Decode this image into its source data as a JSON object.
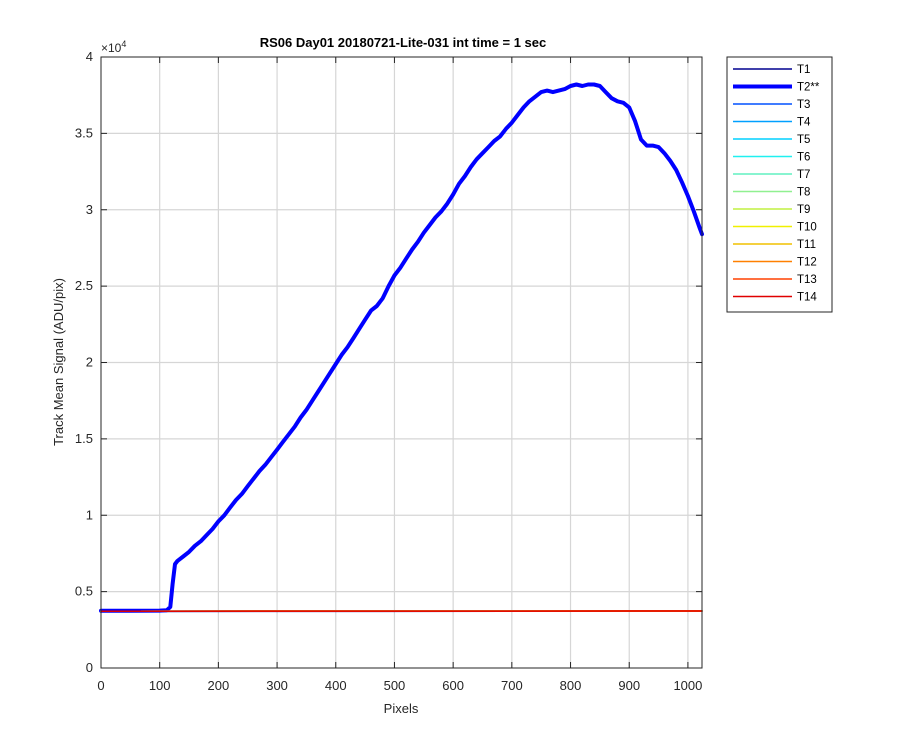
{
  "chart_data": {
    "type": "line",
    "title": "RS06 Day01 20180721-Lite-031 int time = 1 sec",
    "xlabel": "Pixels",
    "ylabel": "Track Mean Signal (ADU/pix)",
    "y_exponent_label": "×10",
    "y_exponent_power": "4",
    "xlim": [
      0,
      1024
    ],
    "ylim": [
      0,
      40000
    ],
    "xticks": [
      0,
      100,
      200,
      300,
      400,
      500,
      600,
      700,
      800,
      900,
      1000
    ],
    "xtick_labels": [
      "0",
      "100",
      "200",
      "300",
      "400",
      "500",
      "600",
      "700",
      "800",
      "900",
      "1000"
    ],
    "yticks": [
      0,
      5000,
      10000,
      15000,
      20000,
      25000,
      30000,
      35000,
      40000
    ],
    "ytick_labels": [
      "0",
      "0.5",
      "1",
      "1.5",
      "2",
      "2.5",
      "3",
      "3.5",
      "4"
    ],
    "grid": true,
    "legend_position": "outside-right-top",
    "series": [
      {
        "name": "T1",
        "color": "#00008f",
        "width": 1.5,
        "x": [
          0,
          1024
        ],
        "y": [
          3700,
          3720
        ]
      },
      {
        "name": "T2**",
        "color": "#0000ff",
        "width": 4,
        "x": [
          0,
          50,
          100,
          112,
          118,
          122,
          126,
          130,
          140,
          150,
          160,
          170,
          180,
          190,
          200,
          210,
          220,
          230,
          240,
          250,
          260,
          270,
          280,
          290,
          300,
          310,
          320,
          330,
          340,
          350,
          360,
          370,
          380,
          390,
          400,
          410,
          420,
          430,
          440,
          450,
          460,
          470,
          480,
          490,
          500,
          510,
          520,
          530,
          540,
          550,
          560,
          570,
          580,
          590,
          600,
          610,
          620,
          630,
          640,
          650,
          660,
          670,
          680,
          690,
          700,
          710,
          720,
          730,
          740,
          750,
          760,
          770,
          780,
          790,
          800,
          810,
          820,
          830,
          840,
          850,
          860,
          870,
          880,
          890,
          900,
          910,
          920,
          930,
          940,
          950,
          960,
          970,
          980,
          990,
          1000,
          1010,
          1020,
          1024
        ],
        "y": [
          3750,
          3750,
          3760,
          3780,
          4000,
          5500,
          6800,
          7000,
          7300,
          7600,
          8000,
          8300,
          8700,
          9100,
          9600,
          10000,
          10500,
          11000,
          11400,
          11900,
          12400,
          12900,
          13300,
          13800,
          14300,
          14800,
          15300,
          15800,
          16400,
          16900,
          17500,
          18100,
          18700,
          19300,
          19900,
          20500,
          21000,
          21600,
          22200,
          22800,
          23400,
          23700,
          24200,
          25000,
          25700,
          26200,
          26800,
          27400,
          27900,
          28500,
          29000,
          29500,
          29900,
          30400,
          31000,
          31700,
          32200,
          32800,
          33300,
          33700,
          34100,
          34500,
          34800,
          35300,
          35700,
          36200,
          36700,
          37100,
          37400,
          37700,
          37800,
          37700,
          37800,
          37900,
          38100,
          38200,
          38100,
          38200,
          38200,
          38100,
          37700,
          37300,
          37100,
          37000,
          36700,
          35800,
          34600,
          34200,
          34200,
          34100,
          33700,
          33200,
          32600,
          31800,
          30900,
          29900,
          28800,
          28400
        ]
      },
      {
        "name": "T3",
        "color": "#0050ff",
        "width": 1.5,
        "x": [
          0,
          1024
        ],
        "y": [
          3720,
          3730
        ]
      },
      {
        "name": "T4",
        "color": "#00a0ff",
        "width": 1.5,
        "x": [
          0,
          1024
        ],
        "y": [
          3720,
          3730
        ]
      },
      {
        "name": "T5",
        "color": "#00d0ff",
        "width": 1.5,
        "x": [
          0,
          1024
        ],
        "y": [
          3720,
          3730
        ]
      },
      {
        "name": "T6",
        "color": "#20f0f0",
        "width": 1.5,
        "x": [
          0,
          1024
        ],
        "y": [
          3720,
          3730
        ]
      },
      {
        "name": "T7",
        "color": "#60f0c0",
        "width": 1.5,
        "x": [
          0,
          1024
        ],
        "y": [
          3720,
          3730
        ]
      },
      {
        "name": "T8",
        "color": "#90f090",
        "width": 1.5,
        "x": [
          0,
          1024
        ],
        "y": [
          3720,
          3730
        ]
      },
      {
        "name": "T9",
        "color": "#c0f040",
        "width": 1.5,
        "x": [
          0,
          1024
        ],
        "y": [
          3720,
          3730
        ]
      },
      {
        "name": "T10",
        "color": "#f0f000",
        "width": 1.5,
        "x": [
          0,
          1024
        ],
        "y": [
          3720,
          3730
        ]
      },
      {
        "name": "T11",
        "color": "#f0c000",
        "width": 1.5,
        "x": [
          0,
          1024
        ],
        "y": [
          3720,
          3730
        ]
      },
      {
        "name": "T12",
        "color": "#ff8000",
        "width": 1.5,
        "x": [
          0,
          1024
        ],
        "y": [
          3720,
          3730
        ]
      },
      {
        "name": "T13",
        "color": "#ff4000",
        "width": 1.5,
        "x": [
          0,
          1024
        ],
        "y": [
          3720,
          3730
        ]
      },
      {
        "name": "T14",
        "color": "#e00000",
        "width": 1.5,
        "x": [
          0,
          1024
        ],
        "y": [
          3720,
          3730
        ]
      }
    ]
  }
}
